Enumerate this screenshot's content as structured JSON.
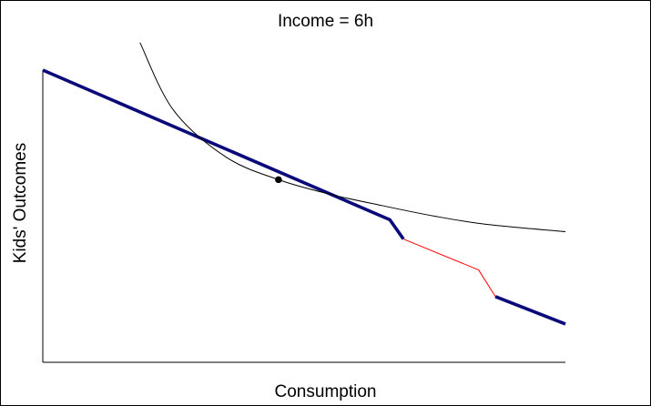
{
  "chart_data": {
    "type": "line",
    "title": "Income = 6h",
    "xlabel": "Consumption",
    "ylabel": "Kids' Outcomes",
    "xlim": [
      0,
      100
    ],
    "ylim": [
      0,
      100
    ],
    "grid": false,
    "axes": {
      "show_ticks": false,
      "show_tick_labels": false
    },
    "colors": {
      "budget": "#0a0a7a",
      "notch": "#ff0000",
      "indifference": "#000000",
      "point": "#000000"
    },
    "series": [
      {
        "style": "budget",
        "points": [
          [
            0,
            100
          ],
          [
            66.4,
            48.8
          ],
          [
            69,
            42.2
          ]
        ]
      },
      {
        "style": "notch",
        "points": [
          [
            69,
            42.2
          ],
          [
            83.4,
            31.6
          ],
          [
            86.6,
            22.5
          ]
        ]
      },
      {
        "style": "budget",
        "points": [
          [
            86.6,
            22.5
          ],
          [
            100,
            13.1
          ]
        ]
      },
      {
        "style": "indifference",
        "points": [
          [
            18.6,
            109.4
          ],
          [
            25,
            86.3
          ],
          [
            35,
            70.3
          ],
          [
            45.1,
            62.5
          ],
          [
            55,
            57.5
          ],
          [
            65,
            53.6
          ],
          [
            75,
            50
          ],
          [
            85,
            47.2
          ],
          [
            100,
            44.7
          ]
        ]
      }
    ],
    "marker": {
      "x": 45.1,
      "y": 62.5
    }
  }
}
